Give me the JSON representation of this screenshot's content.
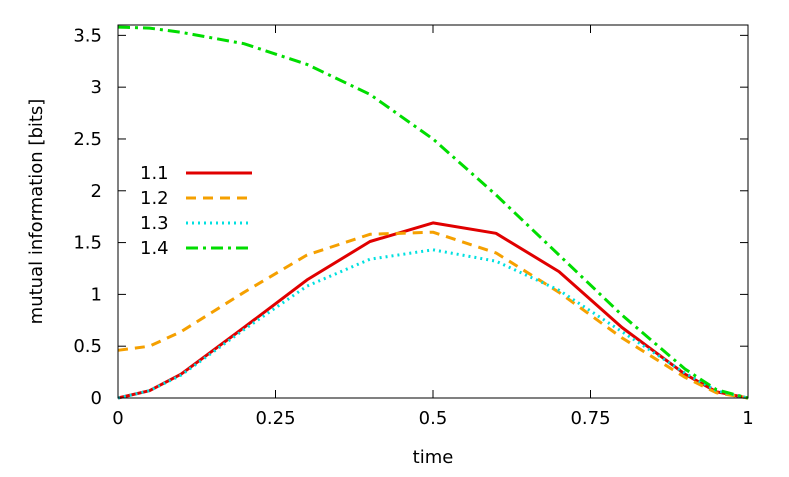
{
  "chart_data": {
    "type": "line",
    "title": "",
    "xlabel": "time",
    "ylabel": "mutual information [bits]",
    "xlim": [
      0,
      1
    ],
    "ylim": [
      0,
      3.6
    ],
    "x_ticks": [
      0,
      0.25,
      0.5,
      0.75,
      1
    ],
    "x_tick_labels": [
      "0",
      "0.25",
      "0.5",
      "0.75",
      "1"
    ],
    "y_ticks": [
      0,
      0.5,
      1,
      1.5,
      2,
      2.5,
      3,
      3.5
    ],
    "y_tick_labels": [
      "0",
      "0.5",
      "1",
      "1.5",
      "2",
      "2.5",
      "3",
      "3.5"
    ],
    "grid": false,
    "legend_position": "left",
    "series": [
      {
        "name": "1.1",
        "color": "#e00000",
        "dash": "solid",
        "x": [
          0,
          0.05,
          0.1,
          0.2,
          0.3,
          0.4,
          0.5,
          0.6,
          0.7,
          0.8,
          0.9,
          0.95,
          1
        ],
        "y": [
          0,
          0.07,
          0.23,
          0.68,
          1.14,
          1.51,
          1.69,
          1.59,
          1.22,
          0.68,
          0.23,
          0.06,
          0
        ]
      },
      {
        "name": "1.2",
        "color": "#f5a000",
        "dash": "dashed",
        "x": [
          0,
          0.05,
          0.1,
          0.2,
          0.3,
          0.4,
          0.5,
          0.6,
          0.7,
          0.8,
          0.9,
          0.95,
          1
        ],
        "y": [
          0.46,
          0.5,
          0.64,
          1.02,
          1.38,
          1.58,
          1.6,
          1.4,
          1.02,
          0.58,
          0.2,
          0.05,
          0
        ]
      },
      {
        "name": "1.3",
        "color": "#00e0e0",
        "dash": "dotted",
        "x": [
          0,
          0.05,
          0.1,
          0.2,
          0.3,
          0.4,
          0.5,
          0.6,
          0.7,
          0.8,
          0.9,
          0.95,
          1
        ],
        "y": [
          0,
          0.07,
          0.22,
          0.66,
          1.08,
          1.34,
          1.43,
          1.32,
          1.04,
          0.64,
          0.24,
          0.07,
          0
        ]
      },
      {
        "name": "1.4",
        "color": "#00dd00",
        "dash": "dash-dot",
        "x": [
          0,
          0.05,
          0.1,
          0.2,
          0.3,
          0.4,
          0.5,
          0.6,
          0.7,
          0.8,
          0.9,
          0.95,
          1
        ],
        "y": [
          3.58,
          3.57,
          3.53,
          3.42,
          3.22,
          2.93,
          2.5,
          1.96,
          1.38,
          0.8,
          0.28,
          0.08,
          0
        ]
      }
    ]
  }
}
